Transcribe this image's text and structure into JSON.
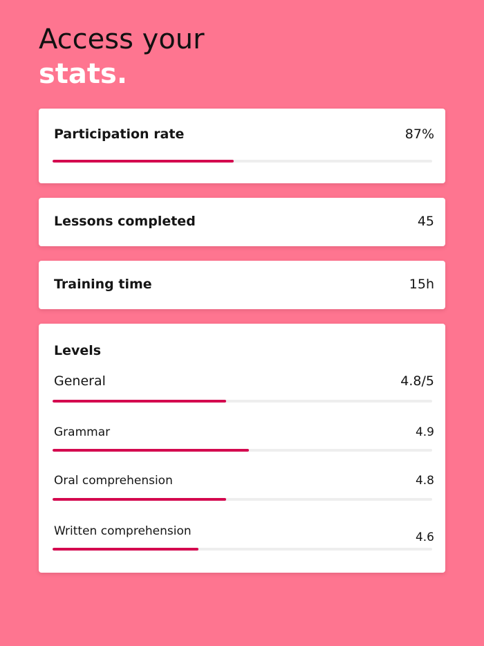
{
  "headline": {
    "line1": "Access your",
    "line2": "stats."
  },
  "participation": {
    "label": "Participation rate",
    "value": "87%",
    "progress": 0.477
  },
  "lessons": {
    "label": "Lessons completed",
    "value": "45"
  },
  "training": {
    "label": "Training time",
    "value": "15h"
  },
  "levels": {
    "title": "Levels",
    "items": [
      {
        "label": "General",
        "value": "4.8/5",
        "progress": 0.457
      },
      {
        "label": "Grammar",
        "value": "4.9",
        "progress": 0.517
      },
      {
        "label": "Oral comprehension",
        "value": "4.8",
        "progress": 0.457
      },
      {
        "label": "Written comprehension",
        "value": "4.6",
        "progress": 0.385
      }
    ]
  },
  "colors": {
    "background": "#fe7590",
    "accent": "#d4094f",
    "track": "#eeeeee",
    "card": "#ffffff"
  }
}
